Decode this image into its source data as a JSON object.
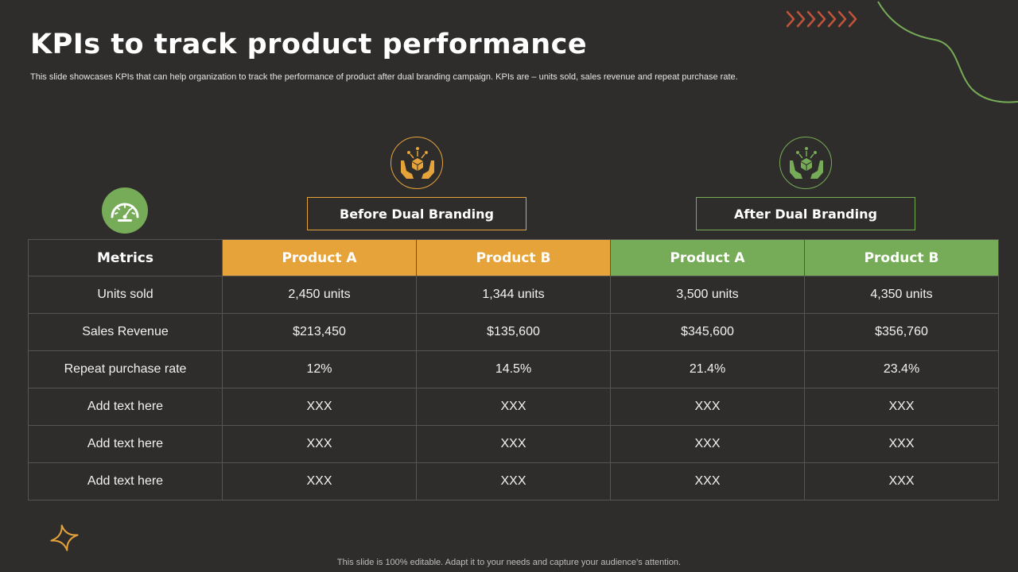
{
  "colors": {
    "background": "#2e2d2b",
    "before_accent": "#e5a33a",
    "after_accent": "#76ab57",
    "chevrons": "#c0533a"
  },
  "header": {
    "title": "KPIs to track product performance",
    "subtitle": "This slide showcases KPIs that can help organization to track the performance of product after dual branding campaign. KPIs are – units sold, sales revenue and repeat purchase rate."
  },
  "icons": {
    "metrics": "speedometer-icon",
    "before": "hands-with-gift-icon",
    "after": "hands-with-gift-icon",
    "decor_top": "chevrons-icon",
    "decor_bottom": "sparkle-star-icon"
  },
  "groups": {
    "before": "Before Dual Branding",
    "after": "After Dual Branding"
  },
  "table": {
    "headers": [
      "Metrics",
      "Product A",
      "Product B",
      "Product A",
      "Product B"
    ],
    "rows": [
      [
        "Units sold",
        "2,450 units",
        "1,344 units",
        "3,500 units",
        "4,350 units"
      ],
      [
        "Sales Revenue",
        "$213,450",
        "$135,600",
        "$345,600",
        "$356,760"
      ],
      [
        "Repeat purchase rate",
        "12%",
        "14.5%",
        "21.4%",
        "23.4%"
      ],
      [
        "Add text here",
        "XXX",
        "XXX",
        "XXX",
        "XXX"
      ],
      [
        "Add text here",
        "XXX",
        "XXX",
        "XXX",
        "XXX"
      ],
      [
        "Add text here",
        "XXX",
        "XXX",
        "XXX",
        "XXX"
      ]
    ]
  },
  "footer": {
    "note": "This slide is 100% editable. Adapt it to your needs and capture your audience’s attention."
  }
}
